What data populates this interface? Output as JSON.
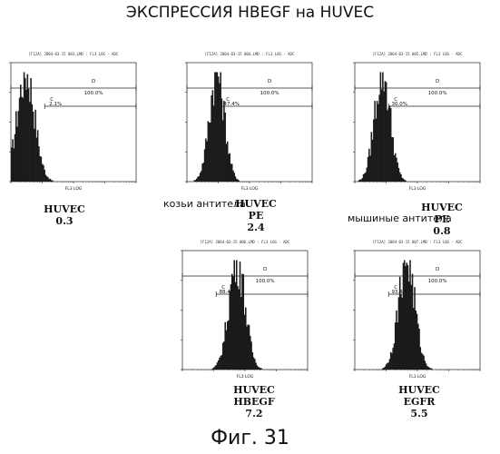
{
  "header": {
    "title": "ЭКСПРЕССИЯ HBEGF на HUVEC"
  },
  "footer": {
    "caption": "Фиг. 31"
  },
  "chart_data": [
    {
      "type": "histogram",
      "panel_title": "[F12A] 2004-03-15 003.LMD : FL3 LOG - ADC",
      "xlabel": "FL3 LOG",
      "gates": [
        {
          "name": "D",
          "percent": "100.0%"
        },
        {
          "name": "C",
          "percent": "2.1%"
        }
      ],
      "peak": 0.3,
      "spread": 0.28,
      "label_lines": [
        "HUVEC",
        "0.3"
      ]
    },
    {
      "type": "histogram",
      "panel_title": "[F12A] 2004-03-15 004.LMD : FL3 LOG - ADC",
      "xlabel": "FL3 LOG",
      "gates": [
        {
          "name": "D",
          "percent": "100.0%"
        },
        {
          "name": "C",
          "percent": "47.4%"
        }
      ],
      "peak": 0.9,
      "spread": 0.24,
      "caption_left": "козьи антитела",
      "label_lines": [
        "HUVEC",
        "PE",
        "2.4"
      ]
    },
    {
      "type": "histogram",
      "panel_title": "[F12A] 2004-03-15 005.LMD : FL3 LOG - ADC",
      "xlabel": "FL3 LOG",
      "gates": [
        {
          "name": "D",
          "percent": "100.0%"
        },
        {
          "name": "C",
          "percent": "30.0%"
        }
      ],
      "peak": 0.75,
      "spread": 0.25,
      "caption_left": "мышиные антитела",
      "label_lines": [
        "HUVEC",
        "PE",
        "0.8"
      ]
    },
    {
      "type": "histogram",
      "panel_title": "[F12A] 2004-03-15 006.LMD : FL3 LOG - ADC",
      "xlabel": "FL3 LOG",
      "gates": [
        {
          "name": "D",
          "percent": "100.0%"
        },
        {
          "name": "C",
          "percent": "88.4%"
        }
      ],
      "peak": 5.5,
      "spread": 0.26,
      "label_lines": [
        "HUVEC",
        "HBEGF",
        "7.2"
      ]
    },
    {
      "type": "histogram",
      "panel_title": "[F12A] 2004-03-15 007.LMD : FL3 LOG - ADC",
      "xlabel": "FL3 LOG",
      "gates": [
        {
          "name": "D",
          "percent": "100.0%"
        },
        {
          "name": "C",
          "percent": "93.4%"
        }
      ],
      "peak": 4.5,
      "spread": 0.26,
      "label_lines": [
        "HUVEC",
        "EGFR",
        "5.5"
      ]
    }
  ]
}
